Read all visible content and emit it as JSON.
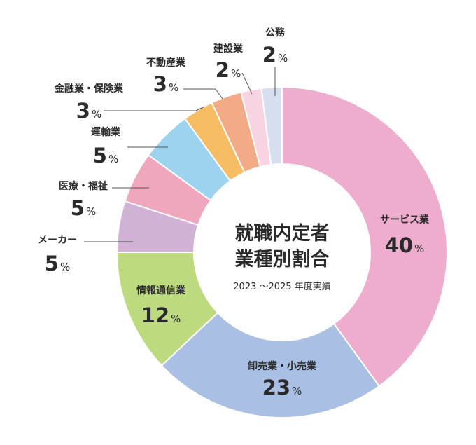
{
  "chart_data": {
    "type": "pie",
    "style": "donut",
    "title_line1": "就職内定者",
    "title_line2": "業種別割合",
    "subtitle": "2023 ～2025 年度実績",
    "unit": "%",
    "slices": [
      {
        "label": "サービス業",
        "value": 40,
        "color": "#eeadcd"
      },
      {
        "label": "卸売業・小売業",
        "value": 23,
        "color": "#a9c0e4"
      },
      {
        "label": "情報通信業",
        "value": 12,
        "color": "#bdda7f"
      },
      {
        "label": "メーカー",
        "value": 5,
        "color": "#d1b1d6"
      },
      {
        "label": "医療・福祉",
        "value": 5,
        "color": "#f0a6bd"
      },
      {
        "label": "運輸業",
        "value": 5,
        "color": "#9ed3f0"
      },
      {
        "label": "金融業・保険業",
        "value": 3,
        "color": "#f6bd64"
      },
      {
        "label": "不動産業",
        "value": 3,
        "color": "#f3aa86"
      },
      {
        "label": "建設業",
        "value": 2,
        "color": "#f8d4e2"
      },
      {
        "label": "公務",
        "value": 2,
        "color": "#d5dff0"
      }
    ]
  }
}
